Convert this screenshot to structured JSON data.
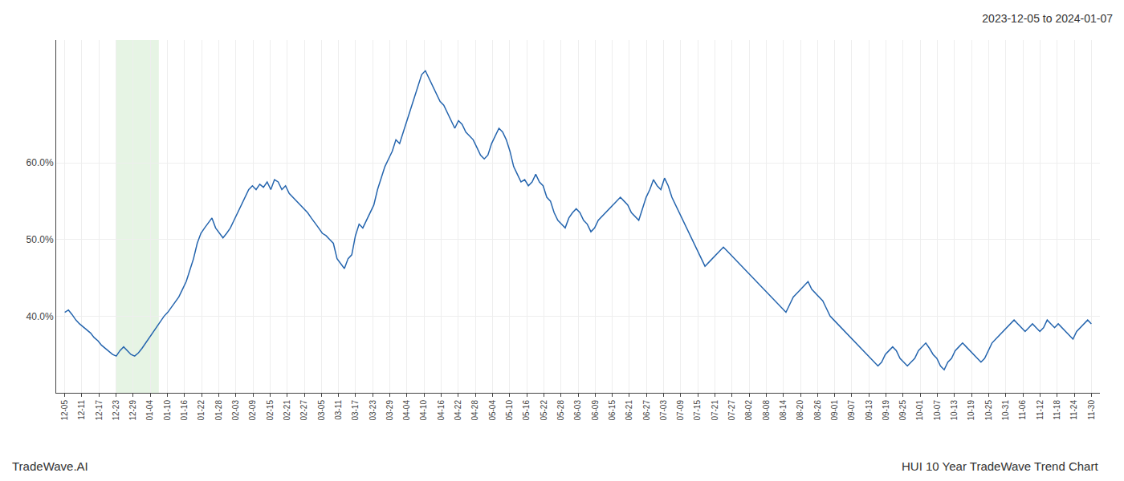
{
  "chart_data": {
    "type": "line",
    "title": "2023-12-05 to 2024-01-07",
    "annotations": [
      {
        "text": "TradeWave.AI"
      },
      {
        "text": "HUI 10 Year TradeWave Trend Chart"
      }
    ],
    "color": "#2565AE",
    "grid": true,
    "highlight": {
      "x0": 13.95,
      "x1": 25.575,
      "color": "#d6ecd2"
    },
    "xlim": [
      -2.325,
      281.325
    ],
    "xticks": [
      {
        "value": 0,
        "label": "12-05"
      },
      {
        "value": 4.65,
        "label": "12-11"
      },
      {
        "value": 9.3,
        "label": "12-17"
      },
      {
        "value": 13.95,
        "label": "12-23"
      },
      {
        "value": 18.6,
        "label": "12-29"
      },
      {
        "value": 23.25,
        "label": "01-04"
      },
      {
        "value": 27.9,
        "label": "01-10"
      },
      {
        "value": 32.55,
        "label": "01-16"
      },
      {
        "value": 37.2,
        "label": "01-22"
      },
      {
        "value": 41.85,
        "label": "01-28"
      },
      {
        "value": 46.5,
        "label": "02-03"
      },
      {
        "value": 51.15,
        "label": "02-09"
      },
      {
        "value": 55.8,
        "label": "02-15"
      },
      {
        "value": 60.45,
        "label": "02-21"
      },
      {
        "value": 65.1,
        "label": "02-27"
      },
      {
        "value": 69.75,
        "label": "03-05"
      },
      {
        "value": 74.4,
        "label": "03-11"
      },
      {
        "value": 79.05,
        "label": "03-17"
      },
      {
        "value": 83.7,
        "label": "03-23"
      },
      {
        "value": 88.35,
        "label": "03-29"
      },
      {
        "value": 93,
        "label": "04-04"
      },
      {
        "value": 97.65,
        "label": "04-10"
      },
      {
        "value": 102.3,
        "label": "04-16"
      },
      {
        "value": 106.95,
        "label": "04-22"
      },
      {
        "value": 111.6,
        "label": "04-28"
      },
      {
        "value": 116.25,
        "label": "05-04"
      },
      {
        "value": 120.9,
        "label": "05-10"
      },
      {
        "value": 125.55,
        "label": "05-16"
      },
      {
        "value": 130.2,
        "label": "05-22"
      },
      {
        "value": 134.85,
        "label": "05-28"
      },
      {
        "value": 139.5,
        "label": "06-03"
      },
      {
        "value": 144.15,
        "label": "06-09"
      },
      {
        "value": 148.8,
        "label": "06-15"
      },
      {
        "value": 153.45,
        "label": "06-21"
      },
      {
        "value": 158.1,
        "label": "06-27"
      },
      {
        "value": 162.75,
        "label": "07-03"
      },
      {
        "value": 167.4,
        "label": "07-09"
      },
      {
        "value": 172.05,
        "label": "07-15"
      },
      {
        "value": 176.7,
        "label": "07-21"
      },
      {
        "value": 181.35,
        "label": "07-27"
      },
      {
        "value": 186,
        "label": "08-02"
      },
      {
        "value": 190.65,
        "label": "08-08"
      },
      {
        "value": 195.3,
        "label": "08-14"
      },
      {
        "value": 199.95,
        "label": "08-20"
      },
      {
        "value": 204.6,
        "label": "08-26"
      },
      {
        "value": 209.25,
        "label": "09-01"
      },
      {
        "value": 213.9,
        "label": "09-07"
      },
      {
        "value": 218.55,
        "label": "09-13"
      },
      {
        "value": 223.2,
        "label": "09-19"
      },
      {
        "value": 227.85,
        "label": "09-25"
      },
      {
        "value": 232.5,
        "label": "10-01"
      },
      {
        "value": 237.15,
        "label": "10-07"
      },
      {
        "value": 241.8,
        "label": "10-13"
      },
      {
        "value": 246.45,
        "label": "10-19"
      },
      {
        "value": 251.1,
        "label": "10-25"
      },
      {
        "value": 255.75,
        "label": "10-31"
      },
      {
        "value": 260.4,
        "label": "11-06"
      },
      {
        "value": 265.05,
        "label": "11-12"
      },
      {
        "value": 269.7,
        "label": "11-18"
      },
      {
        "value": 274.35,
        "label": "11-24"
      },
      {
        "value": 279,
        "label": "11-30"
      }
    ],
    "ylim": [
      30.0,
      76.0
    ],
    "yticks": [
      {
        "value": 40.0,
        "label": "40.0%"
      },
      {
        "value": 50.0,
        "label": "50.0%"
      },
      {
        "value": 60.0,
        "label": "60.0%"
      }
    ],
    "x": [
      0,
      1,
      2,
      3,
      4,
      5,
      6,
      7,
      8,
      9,
      10,
      11,
      12,
      13,
      14,
      15,
      16,
      17,
      18,
      19,
      20,
      21,
      22,
      23,
      24,
      25,
      26,
      27,
      28,
      29,
      30,
      31,
      32,
      33,
      34,
      35,
      36,
      37,
      38,
      39,
      40,
      41,
      42,
      43,
      44,
      45,
      46,
      47,
      48,
      49,
      50,
      51,
      52,
      53,
      54,
      55,
      56,
      57,
      58,
      59,
      60,
      61,
      62,
      63,
      64,
      65,
      66,
      67,
      68,
      69,
      70,
      71,
      72,
      73,
      74,
      75,
      76,
      77,
      78,
      79,
      80,
      81,
      82,
      83,
      84,
      85,
      86,
      87,
      88,
      89,
      90,
      91,
      92,
      93,
      94,
      95,
      96,
      97,
      98,
      99,
      100,
      101,
      102,
      103,
      104,
      105,
      106,
      107,
      108,
      109,
      110,
      111,
      112,
      113,
      114,
      115,
      116,
      117,
      118,
      119,
      120,
      121,
      122,
      123,
      124,
      125,
      126,
      127,
      128,
      129,
      130,
      131,
      132,
      133,
      134,
      135,
      136,
      137,
      138,
      139,
      140,
      141,
      142,
      143,
      144,
      145,
      146,
      147,
      148,
      149,
      150,
      151,
      152,
      153,
      154,
      155,
      156,
      157,
      158,
      159,
      160,
      161,
      162,
      163,
      164,
      165,
      166,
      167,
      168,
      169,
      170,
      171,
      172,
      173,
      174,
      175,
      176,
      177,
      178,
      179,
      180,
      181,
      182,
      183,
      184,
      185,
      186,
      187,
      188,
      189,
      190,
      191,
      192,
      193,
      194,
      195,
      196,
      197,
      198,
      199,
      200,
      201,
      202,
      203,
      204,
      205,
      206,
      207,
      208,
      209,
      210,
      211,
      212,
      213,
      214,
      215,
      216,
      217,
      218,
      219,
      220,
      221,
      222,
      223,
      224,
      225,
      226,
      227,
      228,
      229,
      230,
      231,
      232,
      233,
      234,
      235,
      236,
      237,
      238,
      239,
      240,
      241,
      242,
      243,
      244,
      245,
      246,
      247,
      248,
      249,
      250,
      251,
      252,
      253,
      254,
      255,
      256,
      257,
      258,
      259,
      260,
      261,
      262,
      263,
      264,
      265,
      266,
      267,
      268,
      269,
      270,
      271,
      272,
      273,
      274,
      275,
      276,
      277,
      278,
      279
    ],
    "values": [
      40.5,
      40.8,
      40.2,
      39.5,
      39.0,
      38.6,
      38.2,
      37.8,
      37.2,
      36.8,
      36.2,
      35.8,
      35.4,
      35.0,
      34.8,
      35.5,
      36.0,
      35.5,
      35.0,
      34.8,
      35.2,
      35.8,
      36.5,
      37.2,
      37.8,
      38.5,
      39.2,
      40.0,
      40.5,
      41.2,
      41.8,
      42.5,
      43.5,
      44.5,
      46.0,
      47.5,
      49.5,
      50.8,
      51.5,
      52.2,
      52.8,
      51.5,
      50.8,
      50.2,
      50.8,
      51.5,
      52.5,
      53.5,
      54.5,
      55.5,
      56.5,
      57.0,
      56.5,
      57.2,
      56.8,
      57.5,
      56.5,
      57.8,
      57.5,
      56.5,
      57.0,
      56.0,
      55.5,
      55.0,
      54.5,
      54.0,
      53.5,
      52.8,
      52.2,
      51.5,
      50.8,
      50.5,
      50.0,
      49.5,
      47.5,
      46.8,
      46.2,
      47.5,
      48.0,
      50.5,
      52.0,
      51.5,
      52.5,
      53.5,
      54.5,
      56.5,
      58.0,
      59.5,
      60.5,
      61.5,
      63.0,
      62.5,
      64.0,
      65.5,
      67.0,
      68.5,
      70.0,
      71.5,
      72.0,
      71.0,
      70.0,
      69.0,
      68.0,
      67.5,
      66.5,
      65.5,
      64.5,
      65.5,
      65.0,
      64.0,
      63.5,
      63.0,
      62.0,
      61.0,
      60.5,
      61.0,
      62.5,
      63.5,
      64.5,
      64.0,
      63.0,
      61.5,
      59.5,
      58.5,
      57.5,
      57.8,
      57.0,
      57.5,
      58.5,
      57.5,
      57.0,
      55.5,
      55.0,
      53.5,
      52.5,
      52.0,
      51.5,
      52.8,
      53.5,
      54.0,
      53.5,
      52.5,
      52.0,
      51.0,
      51.5,
      52.5,
      53.0,
      53.5,
      54.0,
      54.5,
      55.0,
      55.5,
      55.0,
      54.5,
      53.5,
      53.0,
      52.5,
      54.0,
      55.5,
      56.5,
      57.8,
      57.0,
      56.5,
      58.0,
      57.0,
      55.5,
      54.5,
      53.5,
      52.5,
      51.5,
      50.5,
      49.5,
      48.5,
      47.5,
      46.5,
      47.0,
      47.5,
      48.0,
      48.5,
      49.0,
      48.5,
      48.0,
      47.5,
      47.0,
      46.5,
      46.0,
      45.5,
      45.0,
      44.5,
      44.0,
      43.5,
      43.0,
      42.5,
      42.0,
      41.5,
      41.0,
      40.5,
      41.5,
      42.5,
      43.0,
      43.5,
      44.0,
      44.5,
      43.5,
      43.0,
      42.5,
      42.0,
      41.0,
      40.0,
      39.5,
      39.0,
      38.5,
      38.0,
      37.5,
      37.0,
      36.5,
      36.0,
      35.5,
      35.0,
      34.5,
      34.0,
      33.5,
      34.0,
      35.0,
      35.5,
      36.0,
      35.5,
      34.5,
      34.0,
      33.5,
      34.0,
      34.5,
      35.5,
      36.0,
      36.5,
      35.8,
      35.0,
      34.5,
      33.5,
      33.0,
      34.0,
      34.5,
      35.5,
      36.0,
      36.5,
      36.0,
      35.5,
      35.0,
      34.5,
      34.0,
      34.5,
      35.5,
      36.5,
      37.0,
      37.5,
      38.0,
      38.5,
      39.0,
      39.5,
      39.0,
      38.5,
      38.0,
      38.5,
      39.0,
      38.5,
      38.0,
      38.5,
      39.5,
      39.0,
      38.5,
      39.0,
      38.5,
      38.0,
      37.5,
      37.0,
      38.0,
      38.5,
      39.0,
      39.5,
      39.0
    ]
  }
}
